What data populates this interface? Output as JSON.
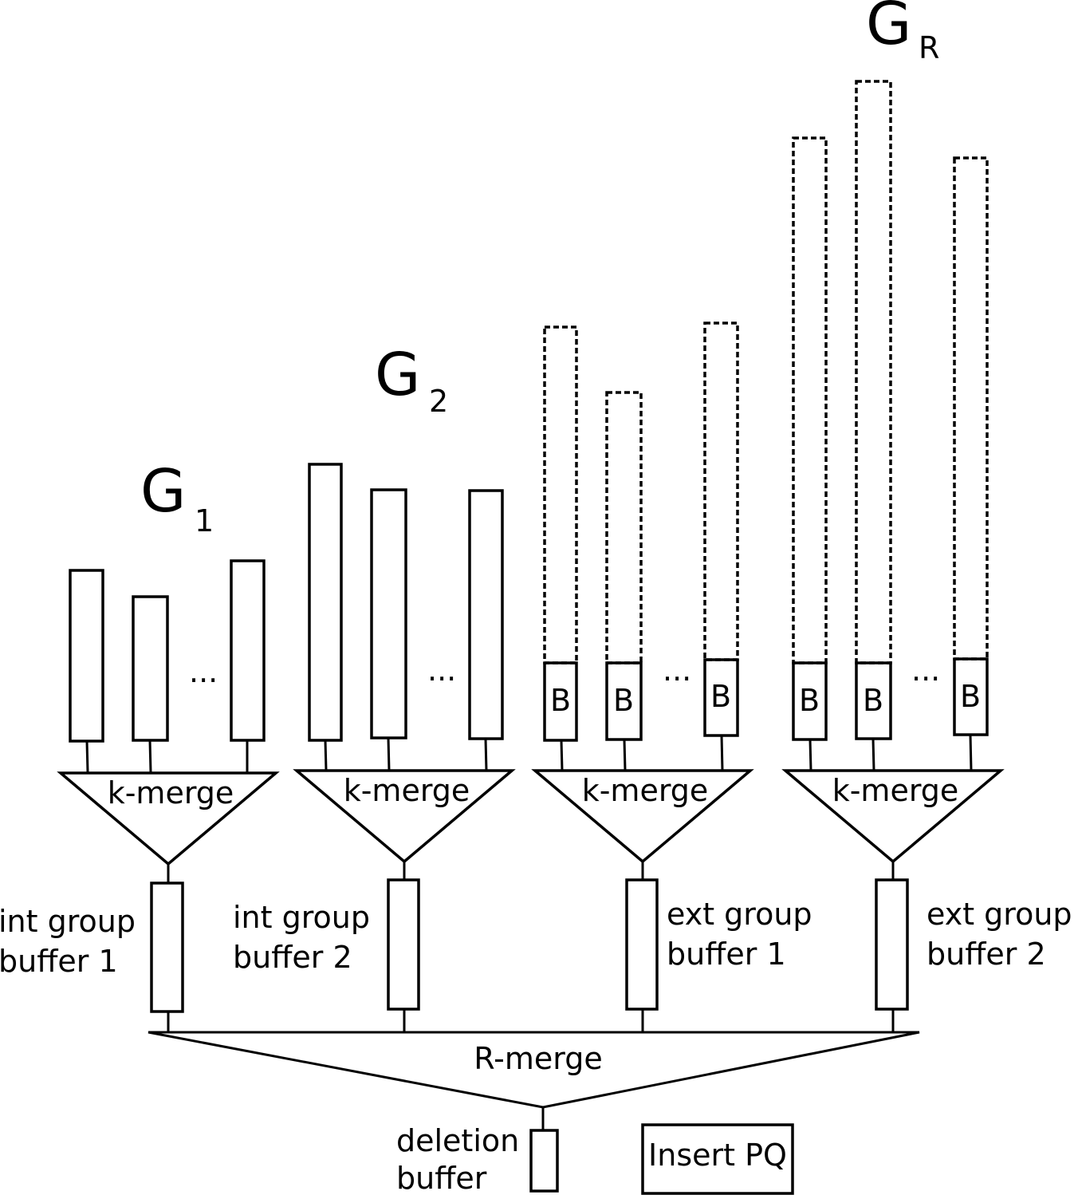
{
  "groups": {
    "g1": {
      "letter": "G",
      "index": "1"
    },
    "g2": {
      "letter": "G",
      "index": "2"
    },
    "gr": {
      "letter": "G",
      "index": "R"
    }
  },
  "ellipsis": "...",
  "block_label": "B",
  "kmerge_label": "k-merge",
  "buffers": {
    "int1": {
      "line1": "int group",
      "line2": "buffer 1"
    },
    "int2": {
      "line1": "int group",
      "line2": "buffer 2"
    },
    "ext1": {
      "line1": "ext group",
      "line2": "buffer 1"
    },
    "ext2": {
      "line1": "ext group",
      "line2": "buffer 2"
    }
  },
  "rmerge_label": "R-merge",
  "deletion_buffer": {
    "line1": "deletion",
    "line2": "buffer"
  },
  "insert_pq_label": "Insert PQ"
}
